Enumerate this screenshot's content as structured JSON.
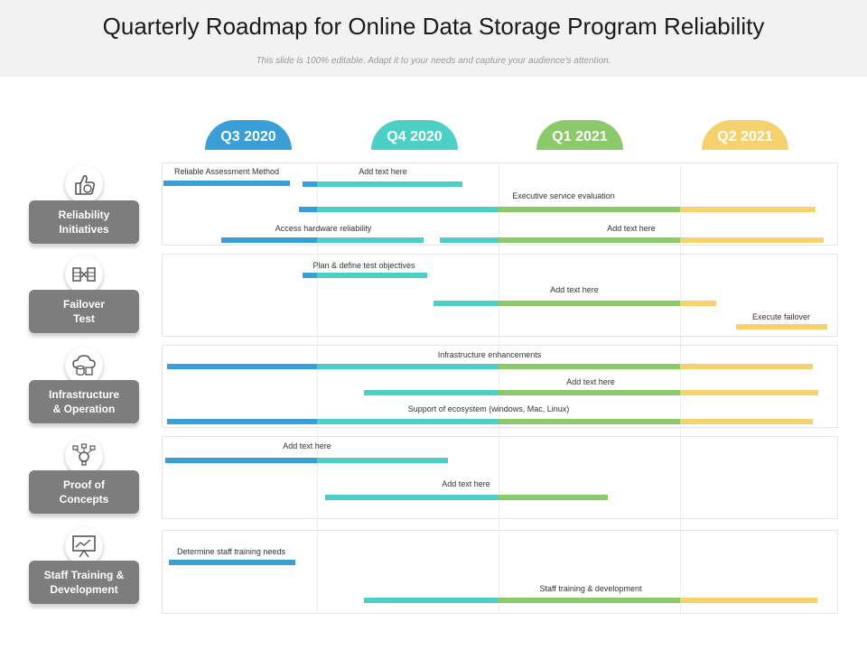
{
  "header": {
    "title": "Quarterly Roadmap for Online Data Storage Program Reliability",
    "subtitle": "This slide is 100% editable. Adapt it to your needs and capture your audience's attention."
  },
  "colors": {
    "q3_2020": "#3a9fd6",
    "q4_2020": "#4ccfc4",
    "q1_2021": "#8cc96a",
    "q2_2021": "#f5d26e",
    "category_box": "#7d7d7d"
  },
  "quarters": [
    {
      "label": "Q3 2020",
      "color": "#3a9fd6"
    },
    {
      "label": "Q4 2020",
      "color": "#4ccfc4"
    },
    {
      "label": "Q1 2021",
      "color": "#8cc96a"
    },
    {
      "label": "Q2 2021",
      "color": "#f5d26e"
    }
  ],
  "categories": [
    {
      "label": "Reliability\nInitiatives",
      "icon": "thumbs-up-hand-icon"
    },
    {
      "label": "Failover\nTest",
      "icon": "server-exchange-icon"
    },
    {
      "label": "Infrastructure\n& Operation",
      "icon": "cloud-database-icon"
    },
    {
      "label": "Proof of\nConcepts",
      "icon": "lightbulb-network-icon"
    },
    {
      "label": "Staff Training &\nDevelopment",
      "icon": "presentation-board-icon"
    }
  ],
  "tasks": [
    "Reliable  Assessment Method",
    "Add text here",
    "Executive service evaluation",
    "Access hardware reliability",
    "Add text here",
    "Plan & define test objectives",
    "Add text here",
    "Execute failover",
    "Infrastructure enhancements",
    "Add text here",
    "Support of ecosystem (windows, Mac, Linux)",
    "Add text here",
    "Add text here",
    "Determine staff training needs",
    "Staff training & development"
  ]
}
